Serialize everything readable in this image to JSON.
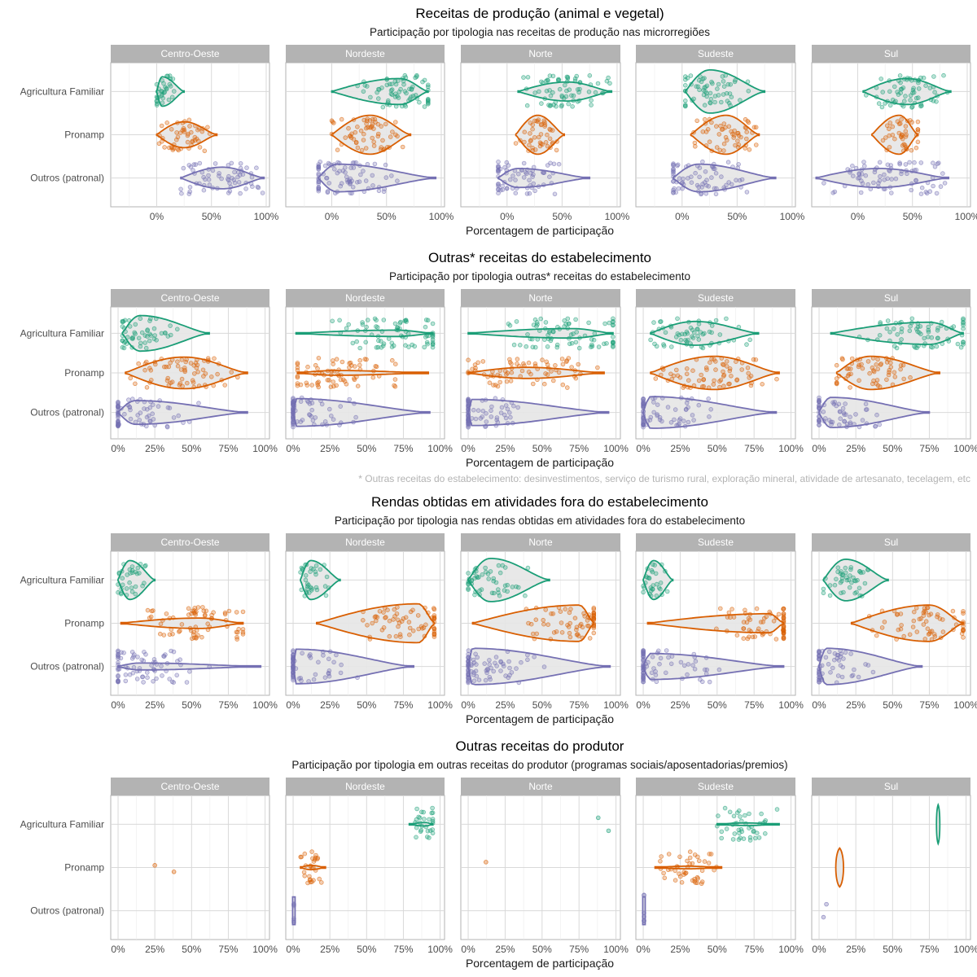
{
  "colors": {
    "Agricultura Familiar": "#1b9e77",
    "Pronamp": "#d95f02",
    "Outros (patronal)": "#7570b3",
    "strip_bg": "#b3b3b3",
    "grid": "#d9d9d9",
    "violin_fill": "#e6e6e6"
  },
  "chart_data": [
    {
      "type": "violin",
      "title": "Receitas de produção (animal e vegetal)",
      "subtitle": "Participação por tipologia nas receitas de produção nas microrregiões",
      "xlabel": "Porcentagem de participação",
      "footnote": "",
      "x_ticks": [
        "0%",
        "50%",
        "100%"
      ],
      "x_tick_values": [
        0,
        50,
        100
      ],
      "xlim": [
        -42,
        103
      ],
      "categories": [
        "Agricultura Familiar",
        "Pronamp",
        "Outros (patronal)"
      ],
      "panels": [
        {
          "region": "Centro-Oeste",
          "series": {
            "Agricultura Familiar": {
              "lo": 0,
              "hi": 25,
              "mode": 5,
              "w": 0.34
            },
            "Pronamp": {
              "lo": 0,
              "hi": 55,
              "mode": 25,
              "w": 0.3
            },
            "Outros (patronal)": {
              "lo": 22,
              "hi": 98,
              "mode": 60,
              "w": 0.25
            }
          }
        },
        {
          "region": "Nordeste",
          "series": {
            "Agricultura Familiar": {
              "lo": 0,
              "hi": 88,
              "mode": 62,
              "w": 0.3
            },
            "Pronamp": {
              "lo": 0,
              "hi": 72,
              "mode": 35,
              "w": 0.45
            },
            "Outros (patronal)": {
              "lo": -12,
              "hi": 95,
              "mode": 5,
              "w": 0.32
            }
          }
        },
        {
          "region": "Norte",
          "series": {
            "Agricultura Familiar": {
              "lo": 10,
              "hi": 95,
              "mode": 55,
              "w": 0.22
            },
            "Pronamp": {
              "lo": 8,
              "hi": 52,
              "mode": 28,
              "w": 0.45
            },
            "Outros (patronal)": {
              "lo": -8,
              "hi": 75,
              "mode": 10,
              "w": 0.22
            }
          }
        },
        {
          "region": "Sudeste",
          "series": {
            "Agricultura Familiar": {
              "lo": 3,
              "hi": 75,
              "mode": 25,
              "w": 0.5
            },
            "Pronamp": {
              "lo": 8,
              "hi": 70,
              "mode": 40,
              "w": 0.45
            },
            "Outros (patronal)": {
              "lo": -8,
              "hi": 85,
              "mode": 15,
              "w": 0.32
            }
          }
        },
        {
          "region": "Sul",
          "series": {
            "Agricultura Familiar": {
              "lo": 5,
              "hi": 85,
              "mode": 45,
              "w": 0.3
            },
            "Pronamp": {
              "lo": 13,
              "hi": 55,
              "mode": 38,
              "w": 0.45
            },
            "Outros (patronal)": {
              "lo": -38,
              "hi": 83,
              "mode": 20,
              "w": 0.22
            }
          }
        }
      ]
    },
    {
      "type": "violin",
      "title": "Outras* receitas do estabelecimento",
      "subtitle": "Participação por tipologia outras* receitas do estabelecimento",
      "xlabel": "Porcentagem de participação",
      "footnote": "* Outras receitas do estabelecimento: desinvestimentos, serviço de turismo rural, exploração mineral, atividade de artesanato, tecelagem, etc",
      "x_ticks": [
        "0%",
        "25%",
        "50%",
        "75%",
        "100%"
      ],
      "x_tick_values": [
        0,
        25,
        50,
        75,
        100
      ],
      "xlim": [
        -5,
        103
      ],
      "categories": [
        "Agricultura Familiar",
        "Pronamp",
        "Outros (patronal)"
      ],
      "panels": [
        {
          "region": "Centro-Oeste",
          "series": {
            "Agricultura Familiar": {
              "lo": 3,
              "hi": 62,
              "mode": 15,
              "w": 0.45
            },
            "Pronamp": {
              "lo": 5,
              "hi": 88,
              "mode": 45,
              "w": 0.4
            },
            "Outros (patronal)": {
              "lo": 0,
              "hi": 88,
              "mode": 12,
              "w": 0.3
            }
          }
        },
        {
          "region": "Nordeste",
          "series": {
            "Agricultura Familiar": {
              "lo": 2,
              "hi": 95,
              "mode": 70,
              "w": 0.08
            },
            "Pronamp": {
              "lo": 3,
              "hi": 92,
              "mode": 30,
              "w": 0.06
            },
            "Outros (patronal)": {
              "lo": 0,
              "hi": 93,
              "mode": 1,
              "w": 0.35
            }
          }
        },
        {
          "region": "Norte",
          "series": {
            "Agricultura Familiar": {
              "lo": 0,
              "hi": 98,
              "mode": 70,
              "w": 0.12
            },
            "Pronamp": {
              "lo": 0,
              "hi": 92,
              "mode": 40,
              "w": 0.14
            },
            "Outros (patronal)": {
              "lo": 0,
              "hi": 95,
              "mode": 2,
              "w": 0.33
            }
          }
        },
        {
          "region": "Sudeste",
          "series": {
            "Agricultura Familiar": {
              "lo": 5,
              "hi": 78,
              "mode": 35,
              "w": 0.3
            },
            "Pronamp": {
              "lo": 5,
              "hi": 92,
              "mode": 48,
              "w": 0.42
            },
            "Outros (patronal)": {
              "lo": 0,
              "hi": 90,
              "mode": 5,
              "w": 0.4
            }
          }
        },
        {
          "region": "Sul",
          "series": {
            "Agricultura Familiar": {
              "lo": 8,
              "hi": 98,
              "mode": 75,
              "w": 0.28
            },
            "Pronamp": {
              "lo": 12,
              "hi": 82,
              "mode": 35,
              "w": 0.42
            },
            "Outros (patronal)": {
              "lo": 0,
              "hi": 75,
              "mode": 8,
              "w": 0.38
            }
          }
        }
      ]
    },
    {
      "type": "violin",
      "title": "Rendas obtidas em atividades fora do estabelecimento",
      "subtitle": "Participação por tipologia nas rendas obtidas em atividades fora do estabelecimento",
      "xlabel": "Porcentagem de participação",
      "footnote": "",
      "x_ticks": [
        "0%",
        "25%",
        "50%",
        "75%",
        "100%"
      ],
      "x_tick_values": [
        0,
        25,
        50,
        75,
        100
      ],
      "xlim": [
        -5,
        103
      ],
      "categories": [
        "Agricultura Familiar",
        "Pronamp",
        "Outros (patronal)"
      ],
      "panels": [
        {
          "region": "Centro-Oeste",
          "series": {
            "Agricultura Familiar": {
              "lo": 0,
              "hi": 25,
              "mode": 8,
              "w": 0.45
            },
            "Pronamp": {
              "lo": 2,
              "hi": 85,
              "mode": 55,
              "w": 0.12
            },
            "Outros (patronal)": {
              "lo": 0,
              "hi": 97,
              "mode": 15,
              "w": 0.08
            }
          }
        },
        {
          "region": "Nordeste",
          "series": {
            "Agricultura Familiar": {
              "lo": 5,
              "hi": 32,
              "mode": 12,
              "w": 0.45
            },
            "Pronamp": {
              "lo": 16,
              "hi": 96,
              "mode": 85,
              "w": 0.45
            },
            "Outros (patronal)": {
              "lo": 0,
              "hi": 82,
              "mode": 2,
              "w": 0.4
            }
          }
        },
        {
          "region": "Norte",
          "series": {
            "Agricultura Familiar": {
              "lo": 0,
              "hi": 55,
              "mode": 15,
              "w": 0.5
            },
            "Pronamp": {
              "lo": 3,
              "hi": 85,
              "mode": 75,
              "w": 0.42
            },
            "Outros (patronal)": {
              "lo": 0,
              "hi": 96,
              "mode": 3,
              "w": 0.42
            }
          }
        },
        {
          "region": "Sudeste",
          "series": {
            "Agricultura Familiar": {
              "lo": 0,
              "hi": 20,
              "mode": 7,
              "w": 0.45
            },
            "Pronamp": {
              "lo": 3,
              "hi": 95,
              "mode": 85,
              "w": 0.22
            },
            "Outros (patronal)": {
              "lo": 0,
              "hi": 95,
              "mode": 5,
              "w": 0.3
            }
          }
        },
        {
          "region": "Sul",
          "series": {
            "Agricultura Familiar": {
              "lo": 3,
              "hi": 47,
              "mode": 18,
              "w": 0.48
            },
            "Pronamp": {
              "lo": 22,
              "hi": 98,
              "mode": 75,
              "w": 0.42
            },
            "Outros (patronal)": {
              "lo": 0,
              "hi": 70,
              "mode": 5,
              "w": 0.42
            }
          }
        }
      ]
    },
    {
      "type": "violin",
      "title": "Outras receitas do produtor",
      "subtitle": "Participação por tipologia em outras receitas do produtor (programas sociais/aposentadorias/premios)",
      "xlabel": "Porcentagem de participação",
      "footnote": "",
      "x_ticks": [
        "0%",
        "25%",
        "50%",
        "75%",
        "100%"
      ],
      "x_tick_values": [
        0,
        25,
        50,
        75,
        100
      ],
      "xlim": [
        -5,
        103
      ],
      "categories": [
        "Agricultura Familiar",
        "Pronamp",
        "Outros (patronal)"
      ],
      "panels": [
        {
          "region": "Centro-Oeste",
          "series": {
            "Pronamp": {
              "points": [
                [
                  25,
                  -0.1
                ],
                [
                  38,
                  0.2
                ]
              ]
            }
          }
        },
        {
          "region": "Nordeste",
          "series": {
            "Agricultura Familiar": {
              "lo": 79,
              "hi": 95,
              "mode": 90,
              "w": 0.04
            },
            "Pronamp": {
              "lo": 5,
              "hi": 22,
              "mode": 12,
              "w": 0.05
            },
            "Outros (patronal)": {
              "lo": 0,
              "hi": 1,
              "mode": 0.5,
              "w": 0.32,
              "thin": true
            }
          }
        },
        {
          "region": "Norte",
          "series": {
            "Agricultura Familiar": {
              "points": [
                [
                  88,
                  -0.3
                ],
                [
                  95,
                  0.3
                ]
              ]
            },
            "Pronamp": {
              "points": [
                [
                  12,
                  -0.25
                ]
              ]
            }
          }
        },
        {
          "region": "Sudeste",
          "series": {
            "Agricultura Familiar": {
              "lo": 50,
              "hi": 92,
              "mode": 70,
              "w": 0.03
            },
            "Pronamp": {
              "lo": 8,
              "hi": 53,
              "mode": 30,
              "w": 0.03
            },
            "Outros (patronal)": {
              "lo": 0,
              "hi": 1,
              "mode": 0.5,
              "w": 0.32,
              "thin": true
            }
          }
        },
        {
          "region": "Sul",
          "series": {
            "Agricultura Familiar": {
              "lo": 80,
              "hi": 83,
              "mode": 81,
              "w": 0.45,
              "vertical": true
            },
            "Pronamp": {
              "lo": 10,
              "hi": 17,
              "mode": 14,
              "w": 0.45,
              "vertical": true
            },
            "Outros (patronal)": {
              "points": [
                [
                  5,
                  -0.3
                ],
                [
                  3,
                  0.3
                ]
              ]
            }
          }
        }
      ]
    }
  ]
}
